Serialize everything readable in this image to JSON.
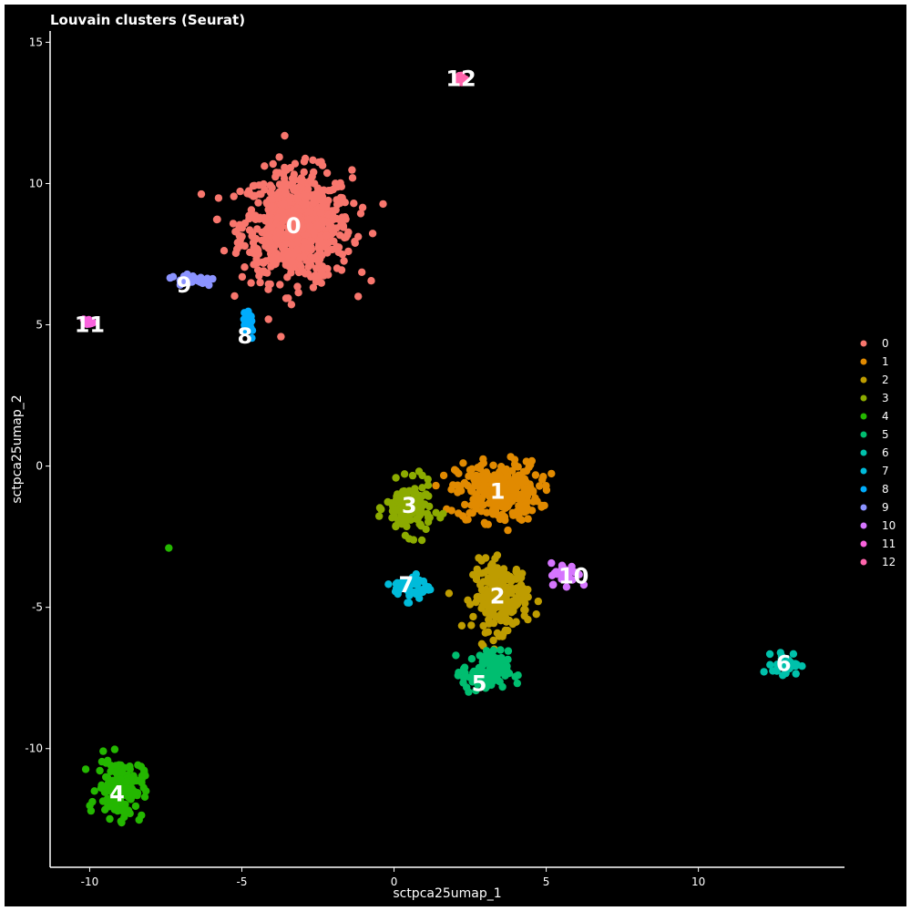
{
  "chart_data": {
    "type": "scatter",
    "title": "Louvain clusters (Seurat)",
    "xlabel": "sctpca25umap_1",
    "ylabel": "sctpca25umap_2",
    "xlim": [
      -11.3,
      14.8
    ],
    "ylim": [
      -14.2,
      15.4
    ],
    "xticks": [
      -10,
      -5,
      0,
      5,
      10
    ],
    "yticks": [
      -10,
      -5,
      0,
      5,
      10,
      15
    ],
    "grid": false,
    "legend_position": "right",
    "series": [
      {
        "name": "0",
        "color": "#F8766D",
        "center": [
          -3.2,
          8.5
        ],
        "spread": [
          1.2,
          1.3
        ]
      },
      {
        "name": "1",
        "color": "#E18A00",
        "center": [
          3.4,
          -0.9
        ],
        "spread": [
          0.9,
          0.7
        ]
      },
      {
        "name": "2",
        "color": "#BE9C00",
        "center": [
          3.5,
          -4.6
        ],
        "spread": [
          0.6,
          0.8
        ]
      },
      {
        "name": "3",
        "color": "#8CAB00",
        "center": [
          0.5,
          -1.5
        ],
        "spread": [
          0.5,
          0.6
        ]
      },
      {
        "name": "4",
        "color": "#24B700",
        "center": [
          -9.0,
          -11.4
        ],
        "spread": [
          0.5,
          0.7
        ]
      },
      {
        "name": "5",
        "color": "#00BE70",
        "center": [
          3.0,
          -7.3
        ],
        "spread": [
          0.5,
          0.5
        ]
      },
      {
        "name": "6",
        "color": "#00C1AB",
        "center": [
          12.9,
          -7.0
        ],
        "spread": [
          0.3,
          0.25
        ]
      },
      {
        "name": "7",
        "color": "#00BBDA",
        "center": [
          0.6,
          -4.3
        ],
        "spread": [
          0.4,
          0.3
        ]
      },
      {
        "name": "8",
        "color": "#00ACFC",
        "center": [
          -4.8,
          5.1
        ],
        "spread": [
          0.15,
          0.4
        ]
      },
      {
        "name": "9",
        "color": "#8B93FF",
        "center": [
          -6.6,
          6.6
        ],
        "spread": [
          0.5,
          0.15
        ]
      },
      {
        "name": "10",
        "color": "#D575FE",
        "center": [
          5.6,
          -3.8
        ],
        "spread": [
          0.3,
          0.25
        ]
      },
      {
        "name": "11",
        "color": "#F962DD",
        "center": [
          -10.0,
          5.1
        ],
        "spread": [
          0.08,
          0.06
        ]
      },
      {
        "name": "12",
        "color": "#FF65AC",
        "center": [
          2.2,
          13.7
        ],
        "spread": [
          0.12,
          0.1
        ]
      }
    ],
    "labels": [
      {
        "text": "0",
        "x": -3.3,
        "y": 8.5
      },
      {
        "text": "1",
        "x": 3.4,
        "y": -0.9
      },
      {
        "text": "2",
        "x": 3.4,
        "y": -4.6
      },
      {
        "text": "3",
        "x": 0.5,
        "y": -1.4
      },
      {
        "text": "4",
        "x": -9.1,
        "y": -11.6
      },
      {
        "text": "5",
        "x": 2.8,
        "y": -7.7
      },
      {
        "text": "6",
        "x": 12.8,
        "y": -7.0
      },
      {
        "text": "7",
        "x": 0.4,
        "y": -4.2
      },
      {
        "text": "8",
        "x": -4.9,
        "y": 4.6
      },
      {
        "text": "9",
        "x": -6.9,
        "y": 6.4
      },
      {
        "text": "10",
        "x": 5.9,
        "y": -3.9
      },
      {
        "text": "11",
        "x": -10.0,
        "y": 5.0
      },
      {
        "text": "12",
        "x": 2.2,
        "y": 13.7
      }
    ],
    "outliers": [
      {
        "series": "4",
        "x": -7.4,
        "y": -2.9
      }
    ]
  }
}
